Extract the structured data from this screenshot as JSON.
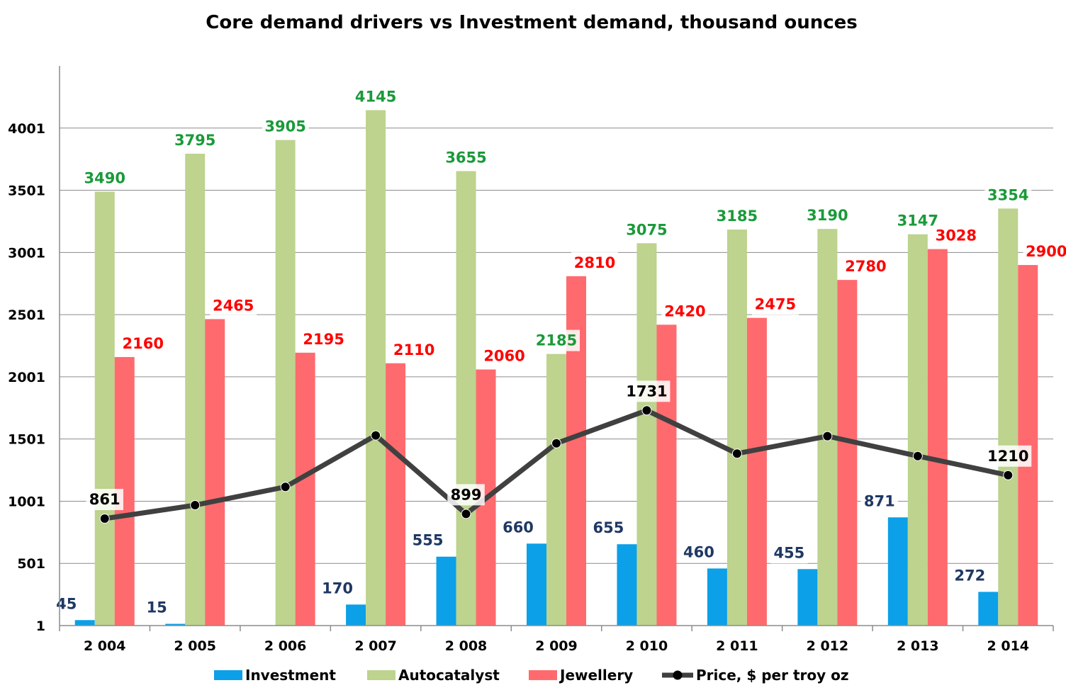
{
  "chart_data": {
    "type": "bar",
    "title": "Core demand drivers vs Investment demand, thousand ounces",
    "xlabel": "",
    "ylabel": "",
    "categories": [
      "2 004",
      "2 005",
      "2 006",
      "2 007",
      "2 008",
      "2 009",
      "2 010",
      "2 011",
      "2 012",
      "2 013",
      "2 014"
    ],
    "yticks": [
      "1",
      "501",
      "1001",
      "1501",
      "2001",
      "2501",
      "3001",
      "3501",
      "4001"
    ],
    "ylim": [
      1,
      4501
    ],
    "grid": true,
    "legend_position": "bottom",
    "series": [
      {
        "name": "Investment",
        "type": "bar",
        "color": "#0BA0E8",
        "label_color": "#1F3864",
        "values": [
          45,
          15,
          0,
          170,
          555,
          660,
          655,
          460,
          455,
          871,
          272
        ],
        "labels": [
          "45",
          "15",
          "",
          "170",
          "555",
          "660",
          "655",
          "460",
          "455",
          "871",
          "272"
        ]
      },
      {
        "name": "Autocatalyst",
        "type": "bar",
        "color": "#BDD38E",
        "label_color": "#1A9A3A",
        "values": [
          3490,
          3795,
          3905,
          4145,
          3655,
          2185,
          3075,
          3185,
          3190,
          3147,
          3354
        ],
        "labels": [
          "3490",
          "3795",
          "3905",
          "4145",
          "3655",
          "2185",
          "3075",
          "3185",
          "3190",
          "3147",
          "3354"
        ]
      },
      {
        "name": "Jewellery",
        "type": "bar",
        "color": "#FF6A6E",
        "label_color": "#FF0000",
        "values": [
          2160,
          2465,
          2195,
          2110,
          2060,
          2810,
          2420,
          2475,
          2780,
          3028,
          2900
        ],
        "labels": [
          "2160",
          "2465",
          "2195",
          "2110",
          "2060",
          "2810",
          "2420",
          "2475",
          "2780",
          "3028",
          "2900"
        ]
      },
      {
        "name": "Price, $ per troy oz",
        "type": "line",
        "color": "#404040",
        "label_color": "#000000",
        "values": [
          861,
          969,
          1116,
          1530,
          899,
          1466,
          1731,
          1384,
          1524,
          1364,
          1210
        ],
        "labels": [
          "861",
          "",
          "",
          "",
          "899",
          "",
          "1731",
          "",
          "",
          "",
          "1210"
        ]
      }
    ]
  }
}
